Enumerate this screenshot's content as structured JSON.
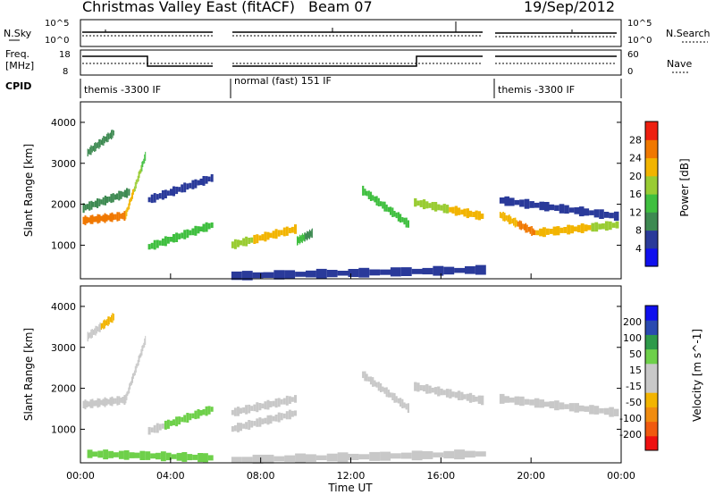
{
  "header": {
    "station": "Christmas Valley East (fitACF)",
    "beam": "Beam 07",
    "date": "19/Sep/2012"
  },
  "control_panels": {
    "nsky_label": "N.Sky",
    "nsky_ticks": [
      "10^5",
      "10^0"
    ],
    "nsearch_label": "N.Search",
    "freq_label_1": "Freq.",
    "freq_label_2": "[MHz]",
    "freq_ticks": [
      "18",
      "8"
    ],
    "nave_label": "Nave",
    "nave_ticks": [
      "60",
      "0"
    ],
    "cpid_label": "CPID",
    "modes": [
      "themis -3300 IF",
      "normal (fast) 151 IF",
      "themis -3300 IF"
    ]
  },
  "colors": {
    "power": [
      "#1010ee",
      "#2a3a9a",
      "#3e8a52",
      "#3fbf3f",
      "#99cc33",
      "#f2b400",
      "#f07800",
      "#ee2010"
    ],
    "velocity": [
      "#ee1010",
      "#f05a10",
      "#f08c10",
      "#f2b400",
      "#c8c8c8",
      "#c8c8c8",
      "#6ed04a",
      "#2e9a4a",
      "#2a4ab0",
      "#1010ee"
    ]
  },
  "chart_data": [
    {
      "type": "heatmap",
      "panel": "power",
      "title": "",
      "xlabel": "",
      "ylabel": "Slant Range [km]",
      "colorbar_label": "Power [dB]",
      "colorbar_ticks": [
        "28",
        "24",
        "20",
        "16",
        "12",
        "8",
        "4"
      ],
      "y_ticks": [
        "4000",
        "3000",
        "2000",
        "1000"
      ],
      "x_ticks": [
        "00:00",
        "04:00",
        "08:00",
        "12:00",
        "16:00",
        "20:00",
        "00:00"
      ],
      "xlim_hours": [
        0,
        24
      ],
      "ylim_km": [
        180,
        4500
      ],
      "scale_range": [
        0,
        32
      ],
      "bands": [
        {
          "t0": 0.1,
          "t1": 2.0,
          "r0": 1600,
          "r1": 1720,
          "v0": 26,
          "v1": 24
        },
        {
          "t0": 2.0,
          "t1": 2.9,
          "r0": 1720,
          "r1": 3200,
          "v0": 24,
          "v1": 14
        },
        {
          "t0": 0.1,
          "t1": 2.2,
          "r0": 1900,
          "r1": 2300,
          "v0": 12,
          "v1": 9
        },
        {
          "t0": 0.3,
          "t1": 1.5,
          "r0": 3250,
          "r1": 3750,
          "v0": 10,
          "v1": 8
        },
        {
          "t0": 3.0,
          "t1": 5.9,
          "r0": 950,
          "r1": 1500,
          "v0": 14,
          "v1": 12
        },
        {
          "t0": 3.0,
          "t1": 5.9,
          "r0": 2100,
          "r1": 2650,
          "v0": 8,
          "v1": 6
        },
        {
          "t0": 6.7,
          "t1": 9.6,
          "r0": 1000,
          "r1": 1400,
          "v0": 18,
          "v1": 24
        },
        {
          "t0": 9.6,
          "t1": 10.3,
          "r0": 1100,
          "r1": 1300,
          "v0": 14,
          "v1": 10
        },
        {
          "t0": 12.5,
          "t1": 14.6,
          "r0": 2350,
          "r1": 1500,
          "v0": 12,
          "v1": 14
        },
        {
          "t0": 14.8,
          "t1": 17.9,
          "r0": 2050,
          "r1": 1700,
          "v0": 18,
          "v1": 22
        },
        {
          "t0": 18.6,
          "t1": 20.2,
          "r0": 1750,
          "r1": 1300,
          "v0": 22,
          "v1": 26
        },
        {
          "t0": 20.2,
          "t1": 23.9,
          "r0": 1300,
          "r1": 1500,
          "v0": 24,
          "v1": 18
        },
        {
          "t0": 18.6,
          "t1": 23.9,
          "r0": 2100,
          "r1": 1700,
          "v0": 8,
          "v1": 6
        },
        {
          "t0": 6.7,
          "t1": 18.0,
          "r0": 250,
          "r1": 400,
          "v0": 6,
          "v1": 6
        }
      ]
    },
    {
      "type": "heatmap",
      "panel": "velocity",
      "title": "",
      "xlabel": "Time UT",
      "ylabel": "Slant Range [km]",
      "colorbar_label": "Velocity [m s^-1]",
      "colorbar_ticks": [
        "200",
        "100",
        "50",
        "15",
        "-15",
        "-50",
        "-100",
        "-200"
      ],
      "y_ticks": [
        "4000",
        "3000",
        "2000",
        "1000"
      ],
      "x_ticks": [
        "00:00",
        "04:00",
        "08:00",
        "12:00",
        "16:00",
        "20:00",
        "00:00"
      ],
      "xlim_hours": [
        0,
        24
      ],
      "ylim_km": [
        180,
        4500
      ],
      "scale_range": [
        -250,
        250
      ],
      "bands": [
        {
          "t0": 0.1,
          "t1": 2.0,
          "r0": 1600,
          "r1": 1720,
          "v0": 0,
          "v1": 0
        },
        {
          "t0": 2.0,
          "t1": 2.9,
          "r0": 1720,
          "r1": 3200,
          "v0": 0,
          "v1": -40
        },
        {
          "t0": 0.3,
          "t1": 1.5,
          "r0": 3250,
          "r1": 3750,
          "v0": -40,
          "v1": -60
        },
        {
          "t0": 3.0,
          "t1": 5.9,
          "r0": 950,
          "r1": 1500,
          "v0": 40,
          "v1": 80
        },
        {
          "t0": 6.7,
          "t1": 9.6,
          "r0": 1000,
          "r1": 1400,
          "v0": 0,
          "v1": -20
        },
        {
          "t0": 6.7,
          "t1": 9.6,
          "r0": 1400,
          "r1": 1750,
          "v0": 50,
          "v1": 30
        },
        {
          "t0": 12.5,
          "t1": 14.6,
          "r0": 2350,
          "r1": 1500,
          "v0": 40,
          "v1": 0
        },
        {
          "t0": 14.8,
          "t1": 17.9,
          "r0": 2050,
          "r1": 1700,
          "v0": 0,
          "v1": 0
        },
        {
          "t0": 18.6,
          "t1": 23.9,
          "r0": 1750,
          "r1": 1400,
          "v0": 0,
          "v1": 0
        },
        {
          "t0": 0.3,
          "t1": 5.9,
          "r0": 400,
          "r1": 300,
          "v0": 60,
          "v1": 60
        },
        {
          "t0": 6.7,
          "t1": 18.0,
          "r0": 250,
          "r1": 400,
          "v0": -40,
          "v1": -40
        }
      ]
    }
  ]
}
